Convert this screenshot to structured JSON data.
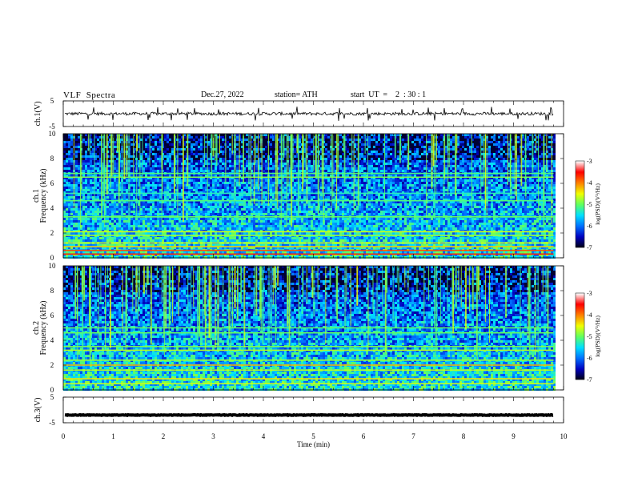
{
  "header": {
    "title": "VLF  Spectra",
    "date": "Dec.27, 2022",
    "station": "station= ATH",
    "start": "start  UT  =    2  : 30 : 1"
  },
  "chart_data": [
    {
      "type": "line",
      "name_label": "ch.1(V)",
      "ylabel": "ch.1(V)",
      "ylim": [
        -5,
        5
      ],
      "yticks": [
        "5",
        "-5"
      ],
      "description_values": {
        "baseline": 0,
        "approx_amplitude": 1
      }
    },
    {
      "type": "heatmap",
      "ylabel_top": "ch.1",
      "ylabel": "Frequency  (kHz)",
      "ylim": [
        0,
        10
      ],
      "yticks": [
        "0",
        "2",
        "4",
        "6",
        "8",
        "10"
      ],
      "xlim": [
        0,
        9.8
      ],
      "colorbar": {
        "label": "log(PSD)(V²/Hz)",
        "range": [
          -7,
          -3
        ],
        "ticks": [
          "-3",
          "-4",
          "-5",
          "-6",
          "-7"
        ],
        "colors": [
          "#000010",
          "#0000c0",
          "#0070ff",
          "#00e0ff",
          "#60ff60",
          "#f0ff00",
          "#ff8000",
          "#ff0000",
          "#ffffff"
        ]
      },
      "bands_khz": [
        {
          "f": 0.3,
          "level": -3.6
        },
        {
          "f": 0.6,
          "level": -3.8
        },
        {
          "f": 0.9,
          "level": -4.3
        },
        {
          "f": 1.2,
          "level": -4.6
        },
        {
          "f": 1.8,
          "level": -4.8
        },
        {
          "f": 2.1,
          "level": -4.6
        },
        {
          "f": 3.3,
          "level": -5.0
        },
        {
          "f": 4.6,
          "level": -5.1
        },
        {
          "f": 5.2,
          "level": -5.3
        },
        {
          "f": 6.5,
          "level": -4.9
        },
        {
          "f": 6.8,
          "level": -5.1
        }
      ]
    },
    {
      "type": "heatmap",
      "ylabel_top": "ch.2",
      "ylabel": "Frequency  (kHz)",
      "ylim": [
        0,
        10
      ],
      "yticks": [
        "0",
        "2",
        "4",
        "6",
        "8",
        "10"
      ],
      "xlim": [
        0,
        9.8
      ],
      "colorbar": {
        "label": "log(PSD)(V²/Hz)",
        "range": [
          -7,
          -3
        ],
        "ticks": [
          "-3",
          "-4",
          "-5",
          "-6",
          "-7"
        ],
        "colors": [
          "#000010",
          "#0000c0",
          "#0070ff",
          "#00e0ff",
          "#60ff60",
          "#f0ff00",
          "#ff8000",
          "#ff0000",
          "#ffffff"
        ]
      },
      "bands_khz": [
        {
          "f": 0.5,
          "level": -4.6
        },
        {
          "f": 0.9,
          "level": -4.4
        },
        {
          "f": 1.6,
          "level": -4.7
        },
        {
          "f": 2.0,
          "level": -4.2
        },
        {
          "f": 2.4,
          "level": -4.8
        },
        {
          "f": 3.2,
          "level": -4.7
        },
        {
          "f": 3.5,
          "level": -4.9
        },
        {
          "f": 4.6,
          "level": -5.0
        },
        {
          "f": 5.0,
          "level": -5.0
        }
      ]
    },
    {
      "type": "line",
      "ylabel": "ch.3(V)",
      "ylim": [
        -5,
        5
      ],
      "yticks": [
        "5",
        "-5"
      ],
      "description_values": {
        "baseline": -2,
        "approx_amplitude": 0.2
      }
    }
  ],
  "xaxis": {
    "label": "Time  (min)",
    "xlim": [
      0,
      10
    ],
    "ticks": [
      "0",
      "1",
      "2",
      "3",
      "4",
      "5",
      "6",
      "7",
      "8",
      "9",
      "10"
    ]
  }
}
